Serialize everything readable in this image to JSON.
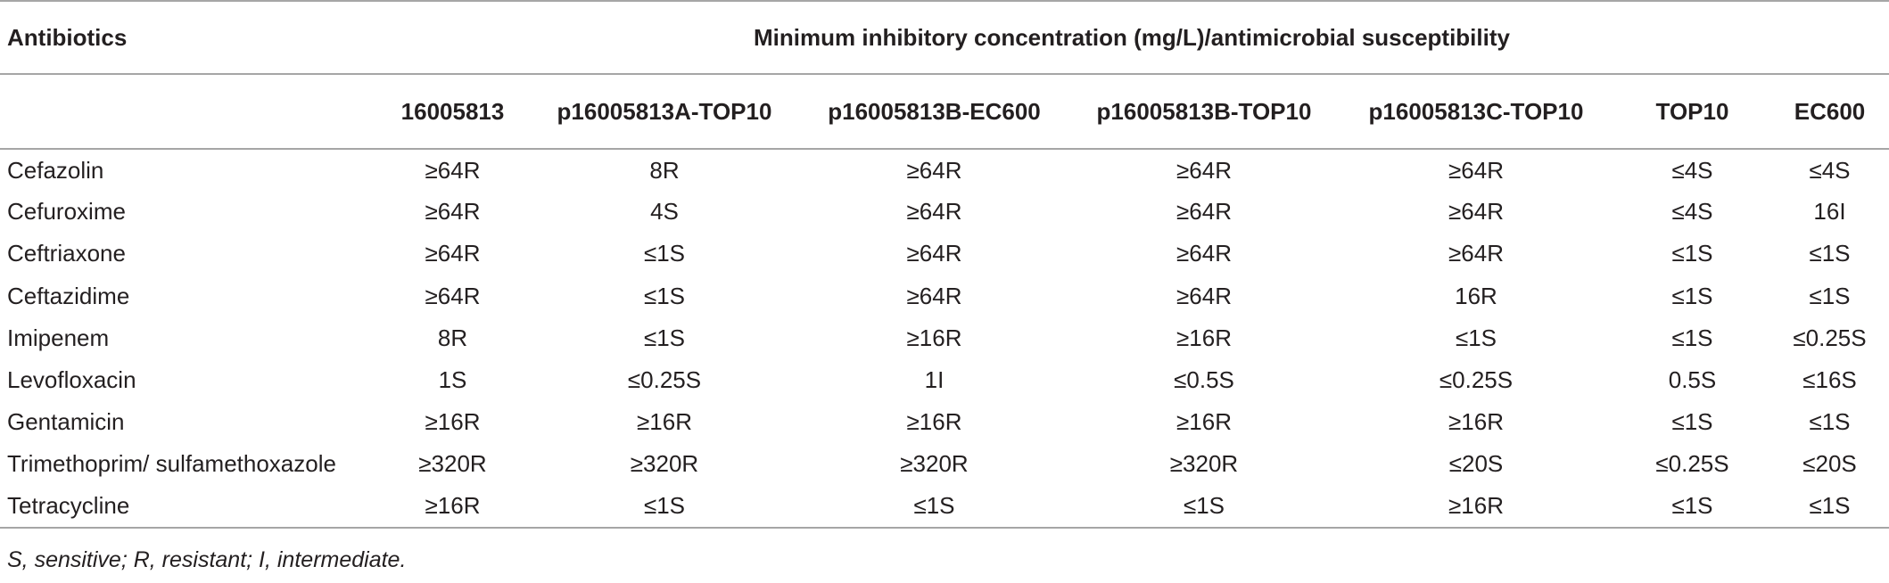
{
  "table": {
    "header_row1": {
      "first": "Antibiotics",
      "group": "Minimum inhibitory concentration (mg/L)/antimicrobial susceptibility"
    },
    "columns": [
      "16005813",
      "p16005813A-TOP10",
      "p16005813B-EC600",
      "p16005813B-TOP10",
      "p16005813C-TOP10",
      "TOP10",
      "EC600"
    ],
    "rows": [
      {
        "name": "Cefazolin",
        "values": [
          "≥64R",
          "8R",
          "≥64R",
          "≥64R",
          "≥64R",
          "≤4S",
          "≤4S"
        ]
      },
      {
        "name": "Cefuroxime",
        "values": [
          "≥64R",
          "4S",
          "≥64R",
          "≥64R",
          "≥64R",
          "≤4S",
          "16I"
        ]
      },
      {
        "name": "Ceftriaxone",
        "values": [
          "≥64R",
          "≤1S",
          "≥64R",
          "≥64R",
          "≥64R",
          "≤1S",
          "≤1S"
        ]
      },
      {
        "name": "Ceftazidime",
        "values": [
          "≥64R",
          "≤1S",
          "≥64R",
          "≥64R",
          "16R",
          "≤1S",
          "≤1S"
        ]
      },
      {
        "name": "Imipenem",
        "values": [
          "8R",
          "≤1S",
          "≥16R",
          "≥16R",
          "≤1S",
          "≤1S",
          "≤0.25S"
        ]
      },
      {
        "name": "Levofloxacin",
        "values": [
          "1S",
          "≤0.25S",
          "1I",
          "≤0.5S",
          "≤0.25S",
          "0.5S",
          "≤16S"
        ]
      },
      {
        "name": "Gentamicin",
        "values": [
          "≥16R",
          "≥16R",
          "≥16R",
          "≥16R",
          "≥16R",
          "≤1S",
          "≤1S"
        ]
      },
      {
        "name": "Trimethoprim/ sulfamethoxazole",
        "values": [
          "≥320R",
          "≥320R",
          "≥320R",
          "≥320R",
          "≤20S",
          "≤0.25S",
          "≤20S"
        ]
      },
      {
        "name": "Tetracycline",
        "values": [
          "≥16R",
          "≤1S",
          "≤1S",
          "≤1S",
          "≥16R",
          "≤1S",
          "≤1S"
        ]
      }
    ],
    "footnote": "S, sensitive; R, resistant; I, intermediate."
  }
}
